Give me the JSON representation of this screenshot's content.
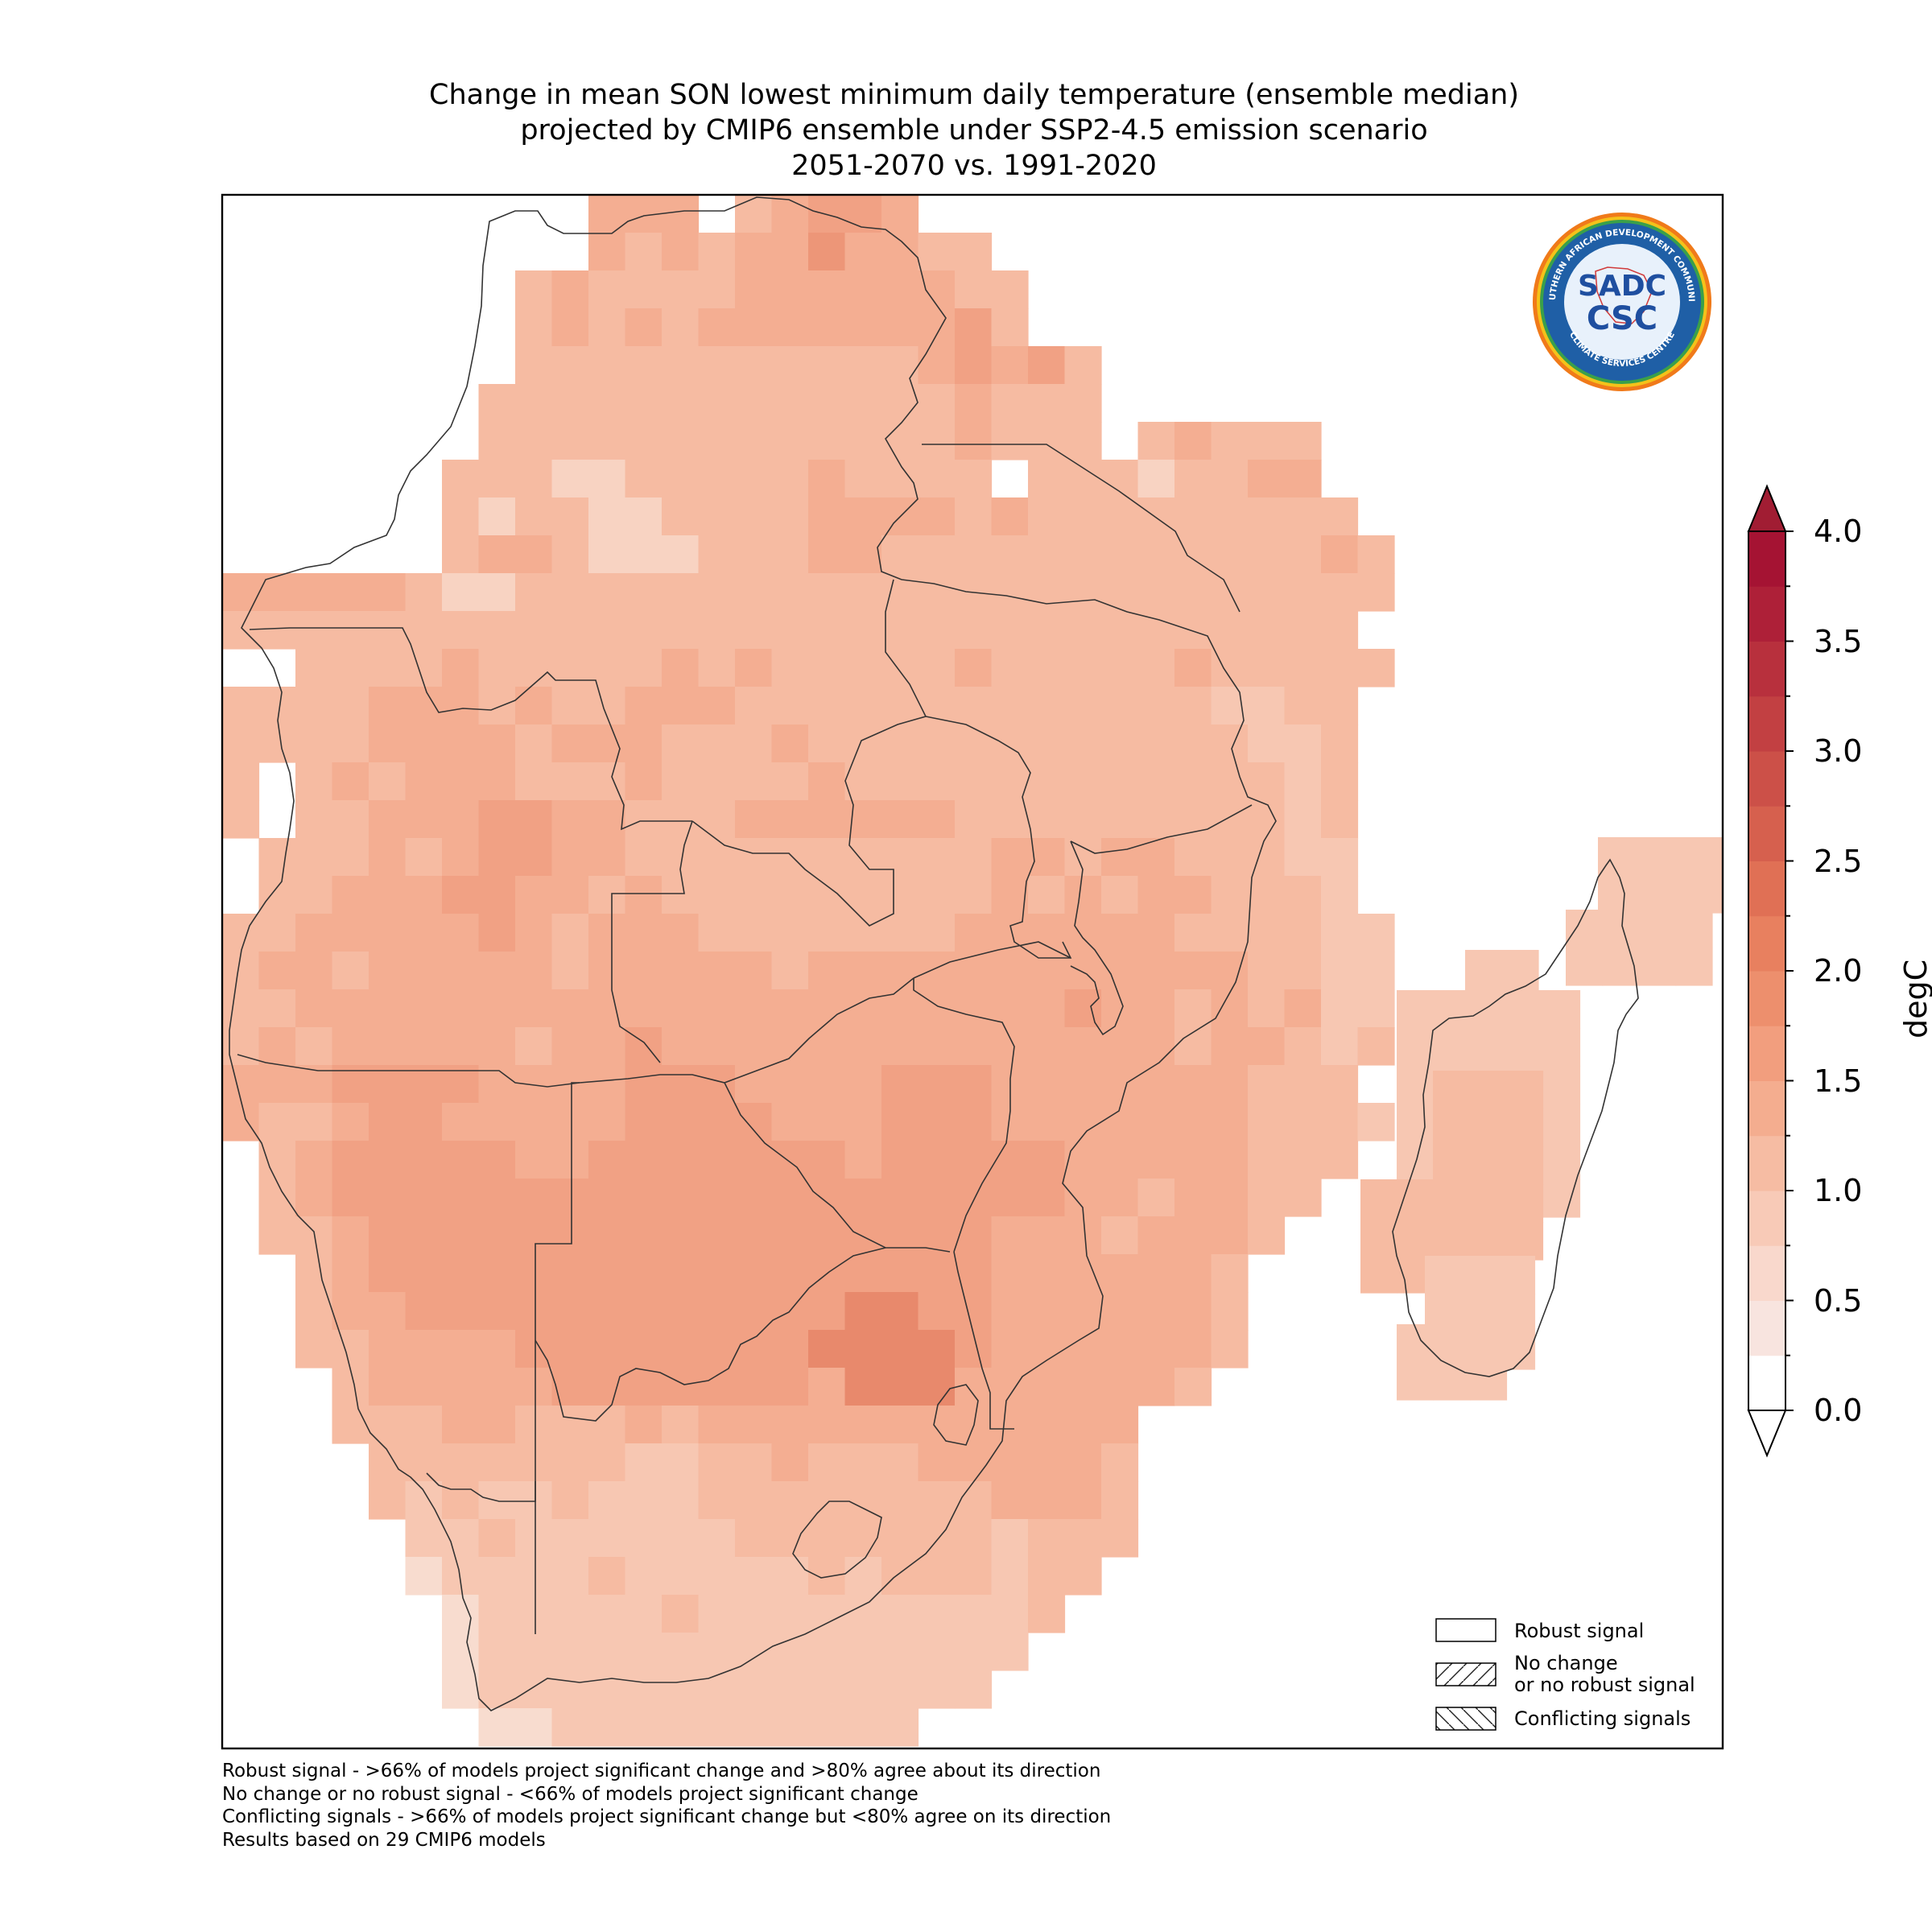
{
  "title": {
    "line1": "Change in mean SON lowest minimum daily temperature (ensemble median)",
    "line2": "projected by CMIP6 ensemble under SSP2-4.5 emission scenario",
    "line3": "2051-2070 vs. 1991-2020"
  },
  "colorbar": {
    "unit": "degC",
    "min": 0.0,
    "max": 4.0,
    "extend": "both",
    "ticks": [
      "0.0",
      "0.5",
      "1.0",
      "1.5",
      "2.0",
      "2.5",
      "3.0",
      "3.5",
      "4.0"
    ],
    "colors": [
      "#ffffff",
      "#f8e4df",
      "#f9d8cc",
      "#f8cab7",
      "#f6bca3",
      "#f4ad8f",
      "#f29e7e",
      "#ed8f6d",
      "#e8805f",
      "#e07055",
      "#d6604e",
      "#cc5048",
      "#c24042",
      "#b8303d",
      "#ae2038",
      "#a51333"
    ],
    "under_color": "#ffffff",
    "over_color": "#a11d33"
  },
  "legend": {
    "items": [
      {
        "label_line1": "Robust signal",
        "label_line2": "",
        "hatch": "none"
      },
      {
        "label_line1": "No change",
        "label_line2": "or no robust signal",
        "hatch": "forward"
      },
      {
        "label_line1": "Conflicting signals",
        "label_line2": "",
        "hatch": "backward"
      }
    ]
  },
  "footnote": {
    "line1": "Robust signal - >66% of models project significant change and >80% agree about its direction",
    "line2": "No change or no robust signal - <66% of models project significant change",
    "line3": "Conflicting signals - >66% of models project significant change but <80% agree on its direction",
    "line4": "Results based on 29 CMIP6 models"
  },
  "logo": {
    "text_top": "SOUTHERN AFRICAN DEVELOPMENT COMMUNITY",
    "text_bottom": "CLIMATE SERVICES CENTRE",
    "mark1": "SADC",
    "mark2": "CSC"
  },
  "map": {
    "region": "Southern Africa and Madagascar",
    "grid_value_range_degC": [
      0.9,
      2.4
    ],
    "highest_values_region": "northern South Africa / south-east Botswana",
    "lowest_values_region": "south-west coast of South Africa and Madagascar",
    "colors": {
      "background": "#ffffff",
      "border": "#333333"
    }
  }
}
